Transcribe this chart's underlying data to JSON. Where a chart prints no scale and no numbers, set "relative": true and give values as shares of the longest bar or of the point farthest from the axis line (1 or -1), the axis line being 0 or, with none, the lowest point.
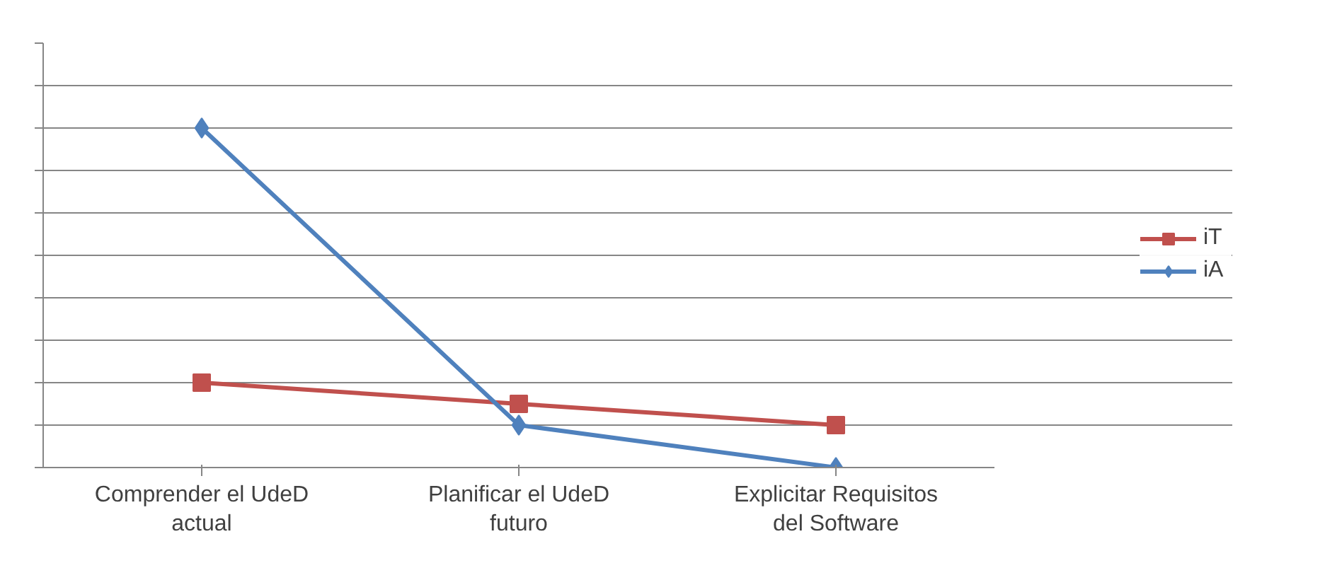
{
  "chart_data": {
    "type": "line",
    "relative": true,
    "categories": [
      "Comprender el UdeD actual",
      "Planificar el UdeD futuro",
      "Explicitar Requisitos del Software"
    ],
    "series": [
      {
        "name": "iT",
        "color": "#c0504d",
        "marker": "square",
        "values": [
          0.25,
          0.1875,
          0.125
        ]
      },
      {
        "name": "iA",
        "color": "#4f81bd",
        "marker": "diamond",
        "values": [
          1,
          0.125,
          0
        ]
      }
    ],
    "grid": "y",
    "legend": "right",
    "line_style": "solid",
    "tick_labels": "x"
  }
}
